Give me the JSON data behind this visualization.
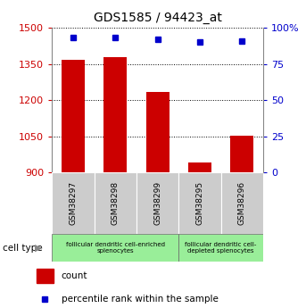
{
  "title": "GDS1585 / 94423_at",
  "samples": [
    "GSM38297",
    "GSM38298",
    "GSM38299",
    "GSM38295",
    "GSM38296"
  ],
  "counts": [
    1368,
    1378,
    1232,
    940,
    1052
  ],
  "percentiles": [
    93,
    93,
    92,
    90,
    91
  ],
  "ylim_left": [
    900,
    1500
  ],
  "yticks_left": [
    900,
    1050,
    1200,
    1350,
    1500
  ],
  "ylim_right": [
    0,
    100
  ],
  "yticks_right": [
    0,
    25,
    50,
    75,
    100
  ],
  "bar_color": "#cc0000",
  "dot_color": "#0000cc",
  "group1_label": "follicular dendritic cell-enriched\nsplenocytes",
  "group2_label": "follicular dendritic cell-\ndepleted splenocytes",
  "group1_indices": [
    0,
    1,
    2
  ],
  "group2_indices": [
    3,
    4
  ],
  "group_bg_color": "#99ee99",
  "tick_label_color_left": "#cc0000",
  "tick_label_color_right": "#0000cc",
  "bar_width": 0.55,
  "legend_count_label": "count",
  "legend_percentile_label": "percentile rank within the sample",
  "ytick_right_labels": [
    "0",
    "25",
    "50",
    "75",
    "100%"
  ]
}
